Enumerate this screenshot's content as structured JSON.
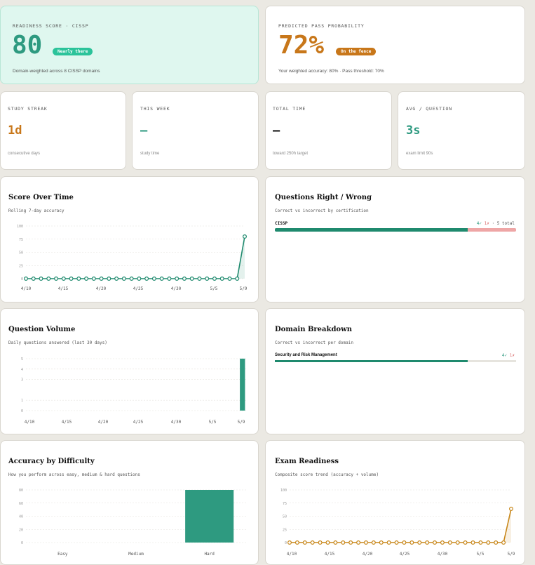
{
  "colors": {
    "teal": "#2e9a80",
    "orange": "#c8771a",
    "red": "#e99a9a",
    "mint_bg": "#dff7ef"
  },
  "readiness": {
    "kicker": "READINESS SCORE · CISSP",
    "score": "80",
    "badge": "Nearly there",
    "note": "Domain-weighted across 8 CISSP domains"
  },
  "pass": {
    "kicker": "PREDICTED PASS PROBABILITY",
    "value": "72%",
    "badge": "On the fence",
    "note": "Your weighted accuracy: 80% · Pass threshold: 70%"
  },
  "stats": [
    {
      "kicker": "STUDY STREAK",
      "value": "1d",
      "note": "consecutive days"
    },
    {
      "kicker": "THIS WEEK",
      "value": "—",
      "note": "study time"
    },
    {
      "kicker": "TOTAL TIME",
      "value": "—",
      "note": "toward 250h target"
    },
    {
      "kicker": "AVG / QUESTION",
      "value": "3s",
      "note": "exam limit 90s"
    }
  ],
  "score_over_time": {
    "title": "Score Over Time",
    "subtitle": "Rolling 7-day accuracy",
    "chart_data": {
      "type": "line",
      "yticks": [
        "100",
        "75",
        "50",
        "25",
        "0"
      ],
      "ylim": [
        0,
        100
      ],
      "xticks": [
        "4/10",
        "4/15",
        "4/20",
        "4/25",
        "4/30",
        "5/5",
        "5/9"
      ],
      "values": [
        0,
        0,
        0,
        0,
        0,
        0,
        0,
        0,
        0,
        0,
        0,
        0,
        0,
        0,
        0,
        0,
        0,
        0,
        0,
        0,
        0,
        0,
        0,
        0,
        0,
        0,
        0,
        0,
        0,
        80
      ]
    }
  },
  "right_wrong": {
    "title": "Questions Right / Wrong",
    "subtitle": "Correct vs incorrect by certification",
    "rows": [
      {
        "label": "CISSP",
        "right": "4✓",
        "wrong": "1✗",
        "total": "· 5 total",
        "right_value": 4,
        "wrong_value": 1
      }
    ]
  },
  "volume": {
    "title": "Question Volume",
    "subtitle": "Daily questions answered (last 30 days)",
    "chart_data": {
      "type": "bar",
      "yticks": [
        "5",
        "4",
        "3",
        "1",
        "0"
      ],
      "ylim": [
        0,
        5
      ],
      "xticks": [
        "4/10",
        "4/15",
        "4/20",
        "4/25",
        "4/30",
        "5/5",
        "5/9"
      ],
      "values": [
        0,
        0,
        0,
        0,
        0,
        0,
        0,
        0,
        0,
        0,
        0,
        0,
        0,
        0,
        0,
        0,
        0,
        0,
        0,
        0,
        0,
        0,
        0,
        0,
        0,
        0,
        0,
        0,
        0,
        5
      ]
    }
  },
  "domain": {
    "title": "Domain Breakdown",
    "subtitle": "Correct vs incorrect per domain",
    "rows": [
      {
        "label": "Security and Risk Management",
        "right": "4✓",
        "wrong": "1✗",
        "right_value": 4,
        "wrong_value": 1
      }
    ]
  },
  "difficulty": {
    "title": "Accuracy by Difficulty",
    "subtitle": "How you perform across easy, medium & hard questions",
    "chart_data": {
      "type": "bar",
      "yticks": [
        "80",
        "60",
        "40",
        "20",
        "0"
      ],
      "ylim": [
        0,
        80
      ],
      "categories": [
        "Easy",
        "Medium",
        "Hard"
      ],
      "values": [
        0,
        0,
        80
      ]
    }
  },
  "exam": {
    "title": "Exam Readiness",
    "subtitle": "Composite score trend (accuracy + volume)",
    "chart_data": {
      "type": "line",
      "yticks": [
        "100",
        "75",
        "50",
        "25",
        "0"
      ],
      "ylim": [
        0,
        100
      ],
      "xticks": [
        "4/10",
        "4/15",
        "4/20",
        "4/25",
        "4/30",
        "5/5",
        "5/9"
      ],
      "values": [
        0,
        0,
        0,
        0,
        0,
        0,
        0,
        0,
        0,
        0,
        0,
        0,
        0,
        0,
        0,
        0,
        0,
        0,
        0,
        0,
        0,
        0,
        0,
        0,
        0,
        0,
        0,
        0,
        0,
        64
      ]
    }
  }
}
